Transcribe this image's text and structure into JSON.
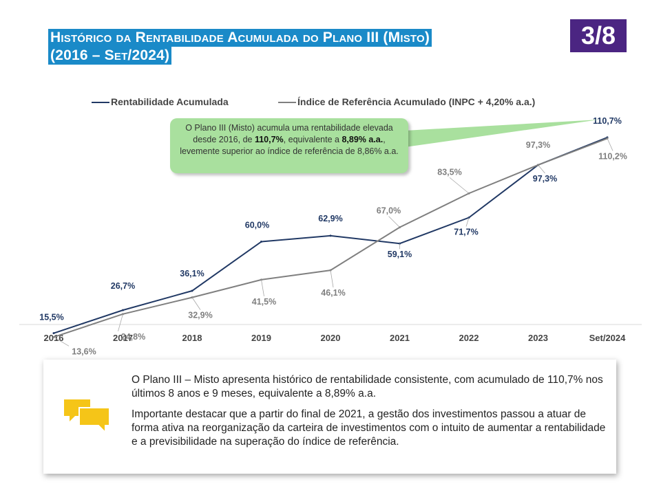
{
  "header": {
    "title_line1": "Histórico da Rentabilidade Acumulada do Plano III (Misto)",
    "title_line2": "(2016 – Set/2024)",
    "page_indicator": "3/8"
  },
  "legend": {
    "series1": "Rentabilidade Acumulada",
    "series2": "Índice de Referência Acumulado  (INPC + 4,20% a.a.)"
  },
  "callout": {
    "part1": "O Plano III (Misto) acumula uma rentabilidade elevada desde 2016, de ",
    "bold1": "110,7%",
    "part2": ", equivalente a ",
    "bold2": "8,89% a.a.",
    "part3": ", levemente superior ao índice de referência de 8,86% a.a."
  },
  "chart_data": {
    "type": "line",
    "categories": [
      "2016",
      "2017",
      "2018",
      "2019",
      "2020",
      "2021",
      "2022",
      "2023",
      "Set/2024"
    ],
    "series": [
      {
        "name": "Rentabilidade Acumulada",
        "color": "#203864",
        "values": [
          15.5,
          26.7,
          36.1,
          60.0,
          62.9,
          59.1,
          71.7,
          97.3,
          110.7
        ],
        "labels": [
          "15,5%",
          "26,7%",
          "36,1%",
          "60,0%",
          "62,9%",
          "59,1%",
          "71,7%",
          "97,3%",
          "110,7%"
        ]
      },
      {
        "name": "Índice de Referência Acumulado  (INPC + 4,20% a.a.)",
        "color": "#7f7f7f",
        "values": [
          13.6,
          24.8,
          32.9,
          41.5,
          46.1,
          67.0,
          83.5,
          97.3,
          110.2
        ],
        "labels": [
          "13,6%",
          "24,8%",
          "32,9%",
          "41,5%",
          "46,1%",
          "67,0%",
          "83,5%",
          "97,3%",
          "110,2%"
        ]
      }
    ],
    "ylim": [
      0,
      125
    ],
    "grid": false,
    "legend_position": "top"
  },
  "note": {
    "p1": "O Plano III – Misto apresenta histórico de rentabilidade consistente, com acumulado de 110,7% nos últimos 8 anos e 9 meses, equivalente a 8,89% a.a.",
    "p2": "Importante destacar que a partir do final de 2021, a gestão dos investimentos passou a atuar de forma ativa na reorganização da carteira de investimentos com o intuito de aumentar a rentabilidade e a previsibilidade na superação do índice de referência."
  },
  "colors": {
    "title_bg": "#1a8ac8",
    "badge_bg": "#4b2582",
    "callout_bg": "#a9e09e",
    "icon": "#f5c518"
  },
  "icons": {
    "note": "chat-bubbles-icon"
  }
}
